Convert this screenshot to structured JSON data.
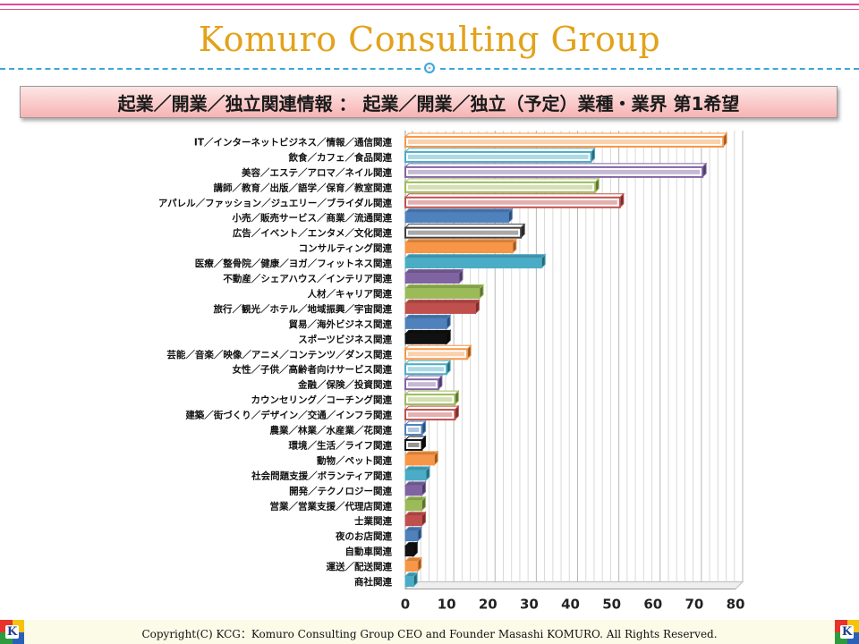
{
  "header": {
    "title": "Komuro Consulting Group"
  },
  "banner": {
    "text": "起業／開業／独立関連情報 ： 起業／開業／独立（予定）業種・業界 第1希望"
  },
  "footer": {
    "text": "Copyright(C)  KCG：Komuro Consulting Group   CEO and Founder  Masashi KOMURO. All Rights Reserved."
  },
  "logo": {
    "letter": "K",
    "colors": [
      "#e8332d",
      "#f6c20e",
      "#2e9c3e",
      "#2a61b8"
    ]
  },
  "chart_data": {
    "type": "bar",
    "orientation": "horizontal",
    "style": "3d",
    "grid": true,
    "legend": "none",
    "xlim": [
      0,
      80
    ],
    "xticks": [
      0,
      10,
      20,
      30,
      40,
      50,
      60,
      70,
      80
    ],
    "categories": [
      "IT／インターネットビジネス／情報／通信関連",
      "飲食／カフェ／食品関連",
      "美容／エステ／アロマ／ネイル関連",
      "講師／教育／出版／語学／保育／教室関連",
      "アパレル／ファッション／ジュエリー／ブライダル関連",
      "小売／販売サービス／商業／流通関連",
      "広告／イベント／エンタメ／文化関連",
      "コンサルティング関連",
      "医療／整骨院／健康／ヨガ／フィットネス関連",
      "不動産／シェアハウス／インテリア関連",
      "人材／キャリア関連",
      "旅行／観光／ホテル／地域振興／宇宙関連",
      "貿易／海外ビジネス関連",
      "スポーツビジネス関連",
      "芸能／音楽／映像／アニメ／コンテンツ／ダンス関連",
      "女性／子供／高齢者向けサービス関連",
      "金融／保険／投資関連",
      "カウンセリング／コーチング関連",
      "建築／街づくり／デザイン／交通／インフラ関連",
      "農業／林業／水産業／花関連",
      "環境／生活／ライフ関連",
      "動物／ペット関連",
      "社会問題支援／ボランティア関連",
      "開発／テクノロジー関連",
      "営業／営業支援／代理店関連",
      "士業関連",
      "夜のお店関連",
      "自動車関連",
      "運送／配送関連",
      "商社関連"
    ],
    "values": [
      77,
      45,
      72,
      46,
      52,
      25,
      28,
      26,
      33,
      13,
      18,
      17,
      10,
      10,
      15,
      10,
      8,
      12,
      12,
      4,
      4,
      7,
      5,
      4,
      4,
      4,
      3,
      2,
      3,
      2
    ],
    "colors": [
      {
        "fill": "#f79646",
        "hollow": true
      },
      {
        "fill": "#4bacc6",
        "hollow": true
      },
      {
        "fill": "#8064a2",
        "hollow": true
      },
      {
        "fill": "#9bbb59",
        "hollow": true
      },
      {
        "fill": "#c0504d",
        "hollow": true
      },
      {
        "fill": "#4f81bd",
        "hollow": false
      },
      {
        "fill": "#404040",
        "hollow": true
      },
      {
        "fill": "#f79646",
        "hollow": false
      },
      {
        "fill": "#4bacc6",
        "hollow": false
      },
      {
        "fill": "#8064a2",
        "hollow": false
      },
      {
        "fill": "#9bbb59",
        "hollow": false
      },
      {
        "fill": "#c0504d",
        "hollow": false
      },
      {
        "fill": "#4f81bd",
        "hollow": false
      },
      {
        "fill": "#111111",
        "hollow": false
      },
      {
        "fill": "#f79646",
        "hollow": true
      },
      {
        "fill": "#4bacc6",
        "hollow": true
      },
      {
        "fill": "#8064a2",
        "hollow": true
      },
      {
        "fill": "#9bbb59",
        "hollow": true
      },
      {
        "fill": "#c0504d",
        "hollow": true
      },
      {
        "fill": "#4f81bd",
        "hollow": true
      },
      {
        "fill": "#111111",
        "hollow": true
      },
      {
        "fill": "#f79646",
        "hollow": false
      },
      {
        "fill": "#4bacc6",
        "hollow": false
      },
      {
        "fill": "#8064a2",
        "hollow": false
      },
      {
        "fill": "#9bbb59",
        "hollow": false
      },
      {
        "fill": "#c0504d",
        "hollow": false
      },
      {
        "fill": "#4f81bd",
        "hollow": false
      },
      {
        "fill": "#111111",
        "hollow": false
      },
      {
        "fill": "#f79646",
        "hollow": false
      },
      {
        "fill": "#4bacc6",
        "hollow": false
      }
    ]
  }
}
